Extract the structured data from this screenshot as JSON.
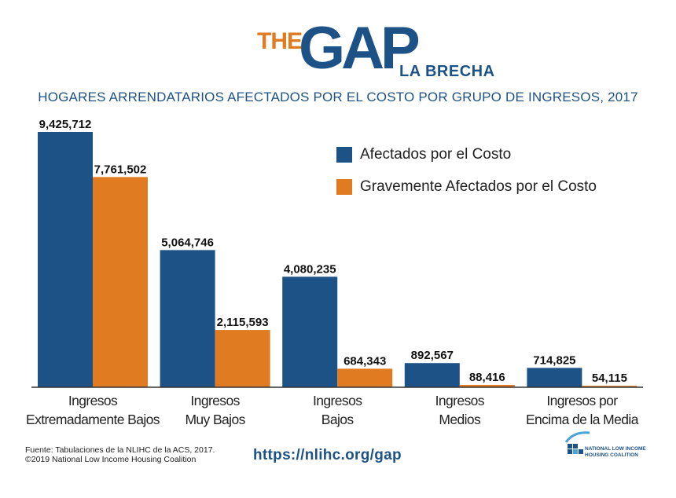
{
  "logo": {
    "the": "THE",
    "gap": "GAP",
    "la_brecha": "LA BRECHA"
  },
  "subtitle": "HOGARES ARRENDATARIOS AFECTADOS POR EL COSTO POR GRUPO DE INGRESOS, 2017",
  "legend": [
    {
      "label": "Afectados por el Costo",
      "color": "#1d5287"
    },
    {
      "label": "Gravemente Afectados por el Costo",
      "color": "#e07b22"
    }
  ],
  "chart_data": {
    "type": "bar",
    "title": "HOGARES ARRENDATARIOS AFECTADOS POR EL COSTO POR GRUPO DE INGRESOS, 2017",
    "categories": [
      [
        "Ingresos",
        "Extremadamente Bajos"
      ],
      [
        "Ingresos",
        "Muy Bajos"
      ],
      [
        "Ingresos",
        "Bajos"
      ],
      [
        "Ingresos",
        "Medios"
      ],
      [
        "Ingresos por",
        "Encima de la Media"
      ]
    ],
    "series": [
      {
        "name": "Afectados por el Costo",
        "color": "#1d5287",
        "values": [
          9425712,
          5064746,
          4080235,
          892567,
          714825
        ],
        "labels": [
          "9,425,712",
          "5,064,746",
          "4,080,235",
          "892,567",
          "714,825"
        ]
      },
      {
        "name": "Gravemente Afectados por el Costo",
        "color": "#e07b22",
        "values": [
          7761502,
          2115593,
          684343,
          88416,
          54115
        ],
        "labels": [
          "7,761,502",
          "2,115,593",
          "684,343",
          "88,416",
          "54,115"
        ]
      }
    ],
    "ylim": [
      0,
      10000000
    ],
    "xlabel": "",
    "ylabel": "",
    "grid": false,
    "legend_position": "top-right"
  },
  "footer": {
    "source_line1": "Fuente: Tabulaciones de la NLIHC de la ACS, 2017.",
    "source_line2": "©2019 National Low Income Housing Coalition",
    "url": "https://nlihc.org/gap",
    "org_name": "NATIONAL LOW INCOME\nHOUSING COALITION"
  }
}
